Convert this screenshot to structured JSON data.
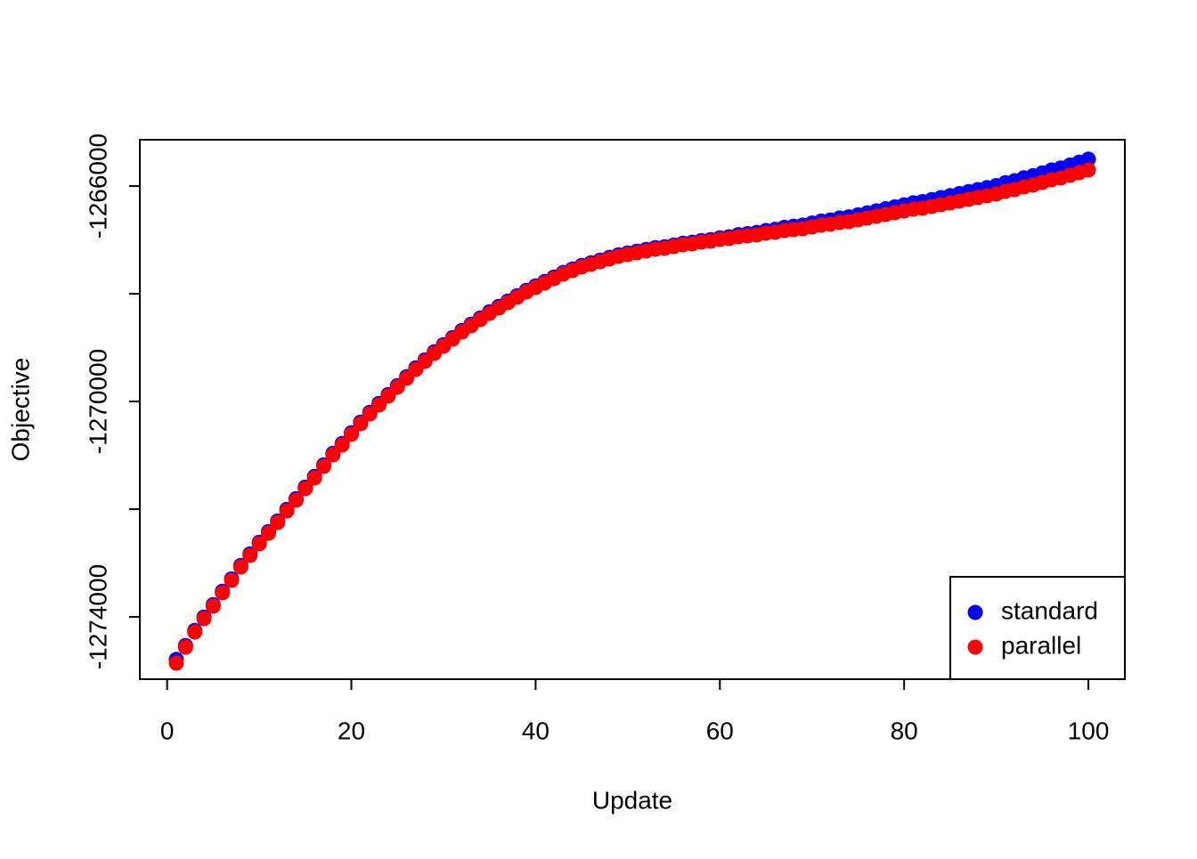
{
  "chart_data": {
    "type": "scatter",
    "x_label": "Update",
    "y_label": "Objective",
    "x": [
      1,
      2,
      3,
      4,
      5,
      6,
      7,
      8,
      9,
      10,
      11,
      12,
      13,
      14,
      15,
      16,
      17,
      18,
      19,
      20,
      21,
      22,
      23,
      24,
      25,
      26,
      27,
      28,
      29,
      30,
      31,
      32,
      33,
      34,
      35,
      36,
      37,
      38,
      39,
      40,
      41,
      42,
      43,
      44,
      45,
      46,
      47,
      48,
      49,
      50,
      51,
      52,
      53,
      54,
      55,
      56,
      57,
      58,
      59,
      60,
      61,
      62,
      63,
      64,
      65,
      66,
      67,
      68,
      69,
      70,
      71,
      72,
      73,
      74,
      75,
      76,
      77,
      78,
      79,
      80,
      81,
      82,
      83,
      84,
      85,
      86,
      87,
      88,
      89,
      90,
      91,
      92,
      93,
      94,
      95,
      96,
      97,
      98,
      99,
      100
    ],
    "series": [
      {
        "name": "standard",
        "color": "#0000ff",
        "values": [
          -1274790,
          -1274533,
          -1274252,
          -1274004,
          -1273772,
          -1273524,
          -1273293,
          -1273045,
          -1272830,
          -1272615,
          -1272417,
          -1272218,
          -1272003,
          -1271805,
          -1271590,
          -1271392,
          -1271177,
          -1270962,
          -1270780,
          -1270582,
          -1270384,
          -1270202,
          -1270036,
          -1269871,
          -1269706,
          -1269540,
          -1269375,
          -1269226,
          -1269078,
          -1268945,
          -1268813,
          -1268681,
          -1268565,
          -1268450,
          -1268334,
          -1268235,
          -1268135,
          -1268036,
          -1267937,
          -1267854,
          -1267772,
          -1267689,
          -1267606,
          -1267540,
          -1267474,
          -1267425,
          -1267375,
          -1267325,
          -1267276,
          -1267243,
          -1267210,
          -1267177,
          -1267144,
          -1267127,
          -1267094,
          -1267061,
          -1267044,
          -1267011,
          -1266995,
          -1266962,
          -1266941,
          -1266903,
          -1266883,
          -1266862,
          -1266825,
          -1266804,
          -1266767,
          -1266746,
          -1266725,
          -1266687,
          -1266650,
          -1266630,
          -1266593,
          -1266571,
          -1266534,
          -1266497,
          -1266460,
          -1266422,
          -1266385,
          -1266348,
          -1266311,
          -1266289,
          -1266252,
          -1266215,
          -1266178,
          -1266140,
          -1266103,
          -1266066,
          -1266029,
          -1265991,
          -1265937,
          -1265900,
          -1265847,
          -1265808,
          -1265755,
          -1265701,
          -1265664,
          -1265610,
          -1265556,
          -1265502
        ]
      },
      {
        "name": "parallel",
        "color": "#ff0000",
        "values": [
          -1274860,
          -1274563,
          -1274282,
          -1274034,
          -1273802,
          -1273554,
          -1273323,
          -1273075,
          -1272860,
          -1272645,
          -1272447,
          -1272248,
          -1272033,
          -1271835,
          -1271620,
          -1271422,
          -1271207,
          -1270992,
          -1270810,
          -1270612,
          -1270414,
          -1270232,
          -1270066,
          -1269901,
          -1269736,
          -1269570,
          -1269405,
          -1269256,
          -1269108,
          -1268975,
          -1268843,
          -1268711,
          -1268595,
          -1268480,
          -1268364,
          -1268265,
          -1268165,
          -1268066,
          -1267967,
          -1267884,
          -1267802,
          -1267719,
          -1267636,
          -1267570,
          -1267504,
          -1267455,
          -1267405,
          -1267355,
          -1267306,
          -1267273,
          -1267240,
          -1267207,
          -1267174,
          -1267157,
          -1267124,
          -1267091,
          -1267074,
          -1267041,
          -1267025,
          -1266992,
          -1266975,
          -1266942,
          -1266926,
          -1266909,
          -1266876,
          -1266860,
          -1266827,
          -1266810,
          -1266793,
          -1266760,
          -1266727,
          -1266711,
          -1266678,
          -1266661,
          -1266628,
          -1266595,
          -1266562,
          -1266529,
          -1266496,
          -1266463,
          -1266430,
          -1266413,
          -1266380,
          -1266347,
          -1266314,
          -1266281,
          -1266248,
          -1266215,
          -1266182,
          -1266149,
          -1266099,
          -1266066,
          -1266017,
          -1265983,
          -1265934,
          -1265884,
          -1265851,
          -1265802,
          -1265752,
          -1265702
        ]
      }
    ],
    "xlim": [
      -2.96,
      103.96
    ],
    "xticks": [
      0,
      20,
      40,
      60,
      80,
      100
    ],
    "ylim": [
      -1275157,
      -1265140
    ],
    "yticks": [
      -1274000,
      {
        "value": -1272000,
        "label": null
      },
      -1270000,
      {
        "value": -1268000,
        "label": null
      },
      -1266000
    ],
    "legend": "bottomright"
  }
}
